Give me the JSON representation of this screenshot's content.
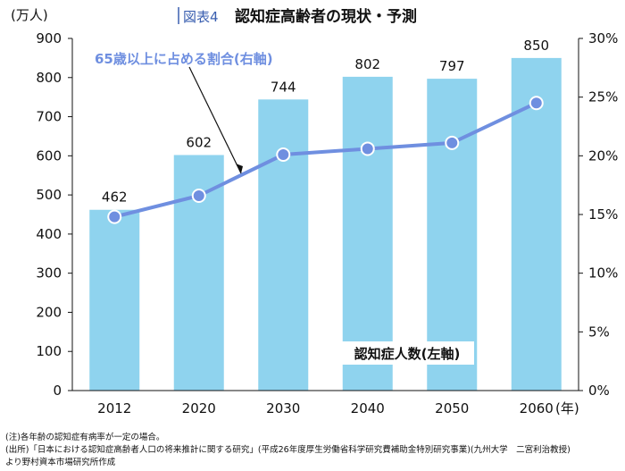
{
  "figure": {
    "tag": "図表4",
    "title": "認知症高齢者の現状・予測"
  },
  "chart_data": {
    "type": "bar",
    "categories": [
      "2012",
      "2020",
      "2030",
      "2040",
      "2050",
      "2060"
    ],
    "x_unit": "(年)",
    "series": [
      {
        "name": "認知症人数(左軸)",
        "type": "bar",
        "axis": "left",
        "values": [
          462,
          602,
          744,
          802,
          797,
          850
        ],
        "data_labels": [
          "462",
          "602",
          "744",
          "802",
          "797",
          "850"
        ],
        "color": "#8fd3ee"
      },
      {
        "name": "65歳以上に占める割合(右軸)",
        "type": "line",
        "axis": "right",
        "values": [
          0.148,
          0.166,
          0.201,
          0.206,
          0.211,
          0.245
        ],
        "color": "#6f8fe0"
      }
    ],
    "y_left": {
      "unit_label": "(万人)",
      "min": 0,
      "max": 900,
      "ticks": [
        0,
        100,
        200,
        300,
        400,
        500,
        600,
        700,
        800,
        900
      ]
    },
    "y_right": {
      "min": 0,
      "max": 0.3,
      "ticks": [
        0,
        0.05,
        0.1,
        0.15,
        0.2,
        0.25,
        0.3
      ],
      "tick_labels": [
        "0%",
        "5%",
        "10%",
        "15%",
        "20%",
        "25%",
        "30%"
      ]
    },
    "grid": false
  },
  "notes": [
    "(注)各年齢の認知症有病率が一定の場合。",
    "(出所)「日本における認知症高齢者人口の将来推計に関する研究」(平成26年度厚生労働省科学研究費補助金特別研究事業)(九州大学　二宮利治教授)",
    "より野村資本市場研究所作成"
  ]
}
